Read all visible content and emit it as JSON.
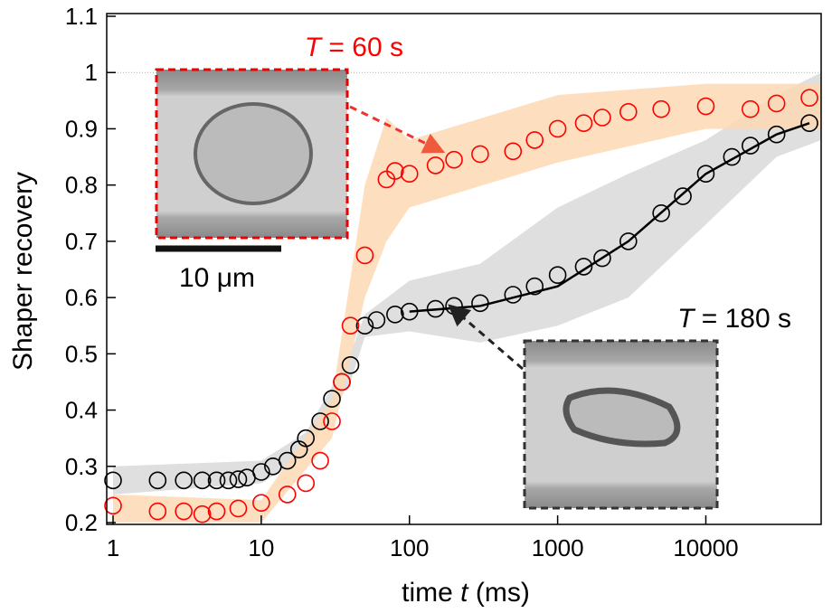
{
  "chart_data": {
    "type": "scatter",
    "x_log": true,
    "x_label": [
      "time ",
      "t",
      " (ms)"
    ],
    "y_label": "Shaper recovery",
    "xlim": [
      1,
      60000
    ],
    "xticks": [
      1,
      10,
      100,
      1000,
      10000
    ],
    "ylim": [
      0.2,
      1.1
    ],
    "yticks": [
      0.2,
      0.3,
      0.4,
      0.5,
      0.6,
      0.7,
      0.8,
      0.9,
      1,
      1.1
    ],
    "reference_line": 1,
    "series": [
      {
        "annotation": [
          "T",
          " = 180 s"
        ],
        "color": "#000000",
        "band_color": "#d9d9d9",
        "x": [
          1,
          2,
          3,
          4,
          5,
          6,
          7,
          8,
          10,
          12,
          15,
          18,
          20,
          25,
          30,
          35,
          40,
          50,
          60,
          80,
          100,
          150,
          200,
          300,
          500,
          700,
          1000,
          1500,
          2000,
          3000,
          5000,
          7000,
          10000,
          15000,
          20000,
          30000,
          50000
        ],
        "values": [
          0.275,
          0.275,
          0.275,
          0.275,
          0.275,
          0.275,
          0.277,
          0.28,
          0.29,
          0.3,
          0.31,
          0.33,
          0.35,
          0.38,
          0.42,
          0.45,
          0.48,
          0.55,
          0.56,
          0.57,
          0.575,
          0.58,
          0.585,
          0.59,
          0.605,
          0.62,
          0.64,
          0.655,
          0.67,
          0.7,
          0.75,
          0.78,
          0.82,
          0.85,
          0.87,
          0.89,
          0.91
        ],
        "band": {
          "x": [
            1,
            10,
            20,
            40,
            50,
            100,
            300,
            1000,
            3000,
            10000,
            30000,
            60000
          ],
          "lower": [
            0.25,
            0.27,
            0.32,
            0.45,
            0.53,
            0.54,
            0.52,
            0.55,
            0.6,
            0.73,
            0.85,
            0.88
          ],
          "upper": [
            0.3,
            0.31,
            0.36,
            0.5,
            0.57,
            0.63,
            0.66,
            0.76,
            0.82,
            0.88,
            0.96,
            1.0
          ]
        },
        "fit": {
          "x": [
            100,
            300,
            1000,
            3000,
            10000,
            30000,
            50000
          ],
          "values": [
            0.575,
            0.585,
            0.62,
            0.7,
            0.82,
            0.89,
            0.91
          ]
        }
      },
      {
        "annotation": [
          "T",
          " = 60 s"
        ],
        "color": "#ff0000",
        "band_color": "#fdd9b5",
        "x": [
          1,
          2,
          3,
          4,
          5,
          7,
          10,
          15,
          20,
          25,
          30,
          35,
          40,
          50,
          70,
          80,
          100,
          150,
          200,
          300,
          500,
          700,
          1000,
          1500,
          2000,
          3000,
          5000,
          10000,
          20000,
          30000,
          50000
        ],
        "values": [
          0.23,
          0.22,
          0.22,
          0.215,
          0.22,
          0.225,
          0.235,
          0.25,
          0.27,
          0.31,
          0.38,
          0.45,
          0.55,
          0.675,
          0.81,
          0.825,
          0.82,
          0.835,
          0.845,
          0.855,
          0.86,
          0.88,
          0.9,
          0.91,
          0.92,
          0.93,
          0.935,
          0.94,
          0.935,
          0.945,
          0.955
        ],
        "band": {
          "x": [
            1,
            10,
            30,
            50,
            70,
            100,
            1000,
            10000,
            60000
          ],
          "lower": [
            0.2,
            0.2,
            0.35,
            0.6,
            0.7,
            0.76,
            0.84,
            0.9,
            0.9
          ],
          "upper": [
            0.25,
            0.24,
            0.42,
            0.8,
            0.92,
            0.88,
            0.96,
            0.98,
            0.98
          ]
        }
      }
    ],
    "scale_bar": "10 μm"
  }
}
